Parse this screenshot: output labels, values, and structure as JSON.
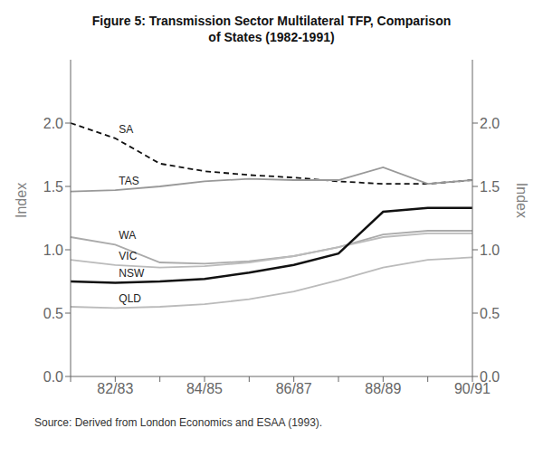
{
  "chart_data": {
    "type": "line",
    "title": "Figure 5: Transmission Sector Multilateral TFP, Comparison\nof States (1982-1991)",
    "annotations": [
      "Source:  Derived from London Economics and ESAA (1993)."
    ],
    "ylabel": "Index",
    "y2label": "Index",
    "categories": [
      null,
      "82/83",
      null,
      "84/85",
      null,
      "86/87",
      null,
      "88/89",
      null,
      "90/91"
    ],
    "ylim": [
      0,
      2.5
    ],
    "yticks": [
      {
        "value": 0,
        "label": "0.0"
      },
      0.5,
      {
        "value": 1.0,
        "label": "1.0"
      },
      1.5,
      {
        "value": 2.0,
        "label": "2.0"
      }
    ],
    "y2lim": [
      0,
      2.5
    ],
    "y2ticks": [
      {
        "value": 0,
        "label": "0.0"
      },
      0.5,
      {
        "value": 1.0,
        "label": "1.0"
      },
      1.5,
      {
        "value": 2.0,
        "label": "2.0"
      }
    ],
    "grid": false,
    "series": [
      {
        "name": "SA",
        "color": "#111111",
        "line_style": "dashed",
        "values": [
          2.0,
          1.88,
          1.68,
          1.62,
          1.59,
          1.57,
          1.54,
          1.52,
          1.52,
          1.55
        ]
      },
      {
        "name": "TAS",
        "color": "#999999",
        "line_style": "solid",
        "values": [
          1.46,
          1.47,
          1.5,
          1.54,
          1.56,
          1.55,
          1.55,
          1.65,
          1.52,
          1.55
        ]
      },
      {
        "name": "WA",
        "color": "#aaaaaa",
        "line_style": "solid",
        "values": [
          1.1,
          1.04,
          0.9,
          0.89,
          0.91,
          0.95,
          1.02,
          1.12,
          1.15,
          1.15
        ]
      },
      {
        "name": "VIC",
        "color": "#bbbbbb",
        "line_style": "solid",
        "values": [
          0.92,
          0.88,
          0.86,
          0.87,
          0.9,
          0.95,
          1.02,
          1.1,
          1.13,
          1.13
        ]
      },
      {
        "name": "NSW",
        "color": "#111111",
        "line_style": "solid",
        "values": [
          0.75,
          0.74,
          0.75,
          0.77,
          0.82,
          0.88,
          0.97,
          1.3,
          1.33,
          1.33
        ]
      },
      {
        "name": "QLD",
        "color": "#bbbbbb",
        "line_style": "solid",
        "values": [
          0.55,
          0.54,
          0.55,
          0.57,
          0.61,
          0.67,
          0.76,
          0.86,
          0.92,
          0.94
        ]
      }
    ]
  }
}
